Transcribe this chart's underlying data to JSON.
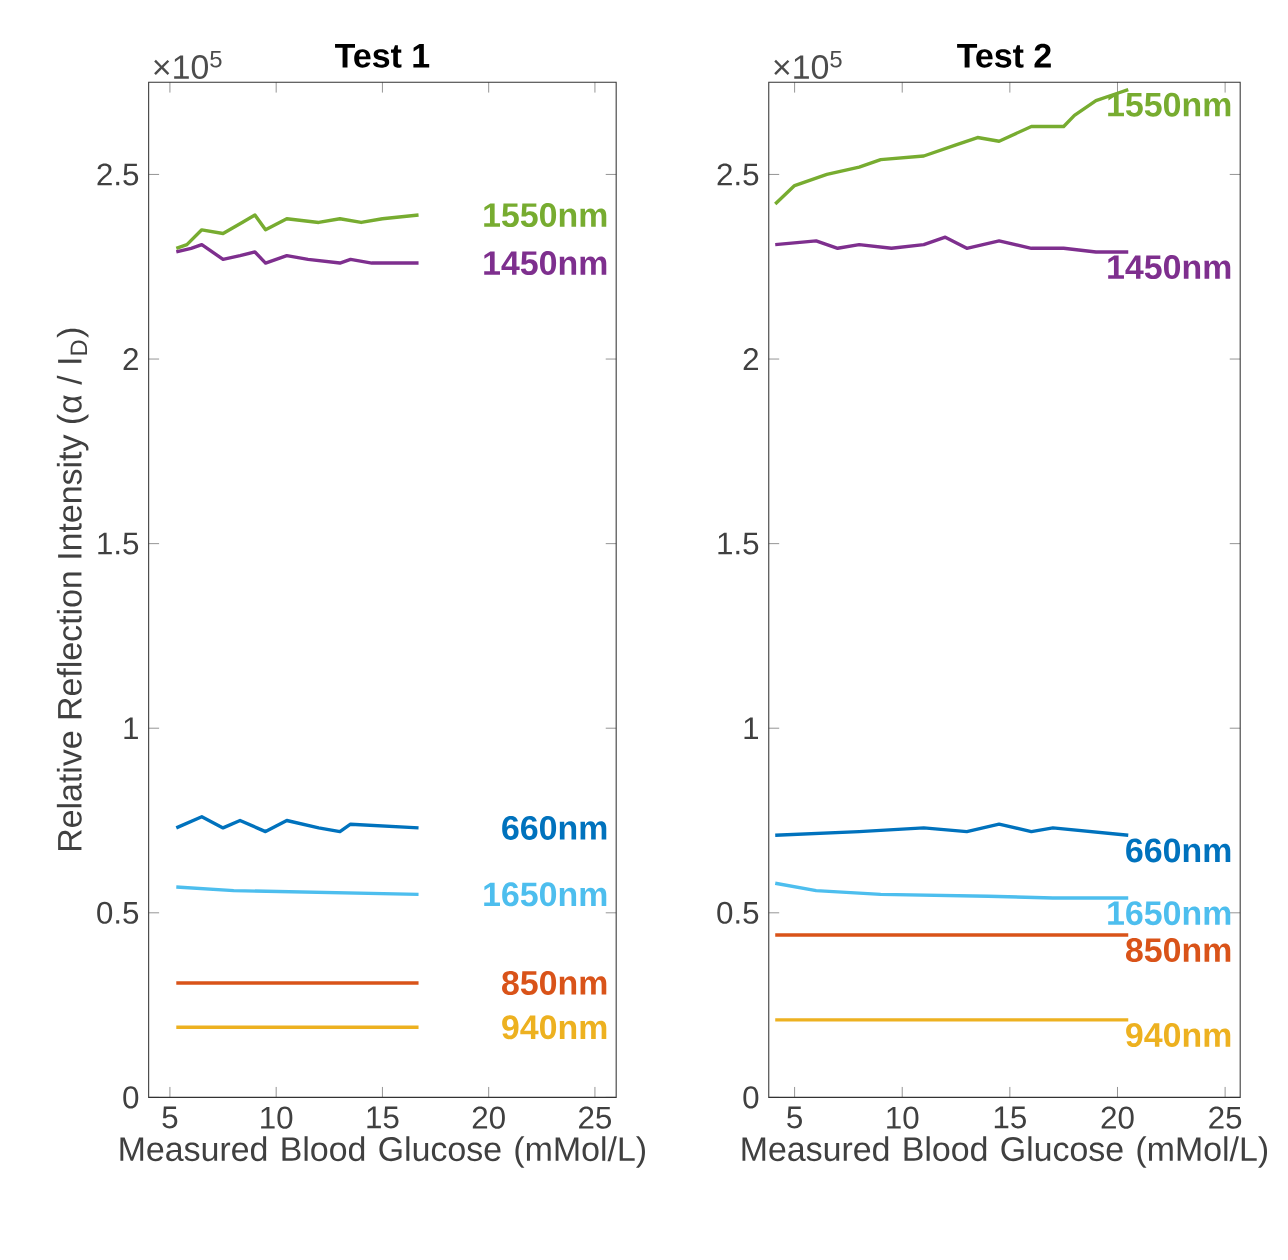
{
  "chart_data": [
    {
      "type": "line",
      "title": "Test 1",
      "xlabel": "Measured Blood Glucose (mMol/L)",
      "ylabel": "Relative Reflection Intensity (α / I$_{D}$)",
      "annotations": [
        "×10$^{5}$"
      ],
      "xlim": [
        4,
        26
      ],
      "xticks": [
        5,
        10,
        15,
        20,
        25
      ],
      "ylim": [
        0,
        2.75
      ],
      "yticks": [
        0,
        0.5,
        1,
        1.5,
        2,
        2.5
      ],
      "series": [
        {
          "name": "1550nm",
          "color": "#77ac30",
          "x": [
            5.3,
            5.8,
            6.5,
            7.5,
            8.4,
            9.0,
            9.5,
            10.5,
            12,
            13,
            14,
            15,
            16.7
          ],
          "values": [
            2.3,
            2.31,
            2.35,
            2.34,
            2.37,
            2.39,
            2.35,
            2.38,
            2.37,
            2.38,
            2.37,
            2.38,
            2.39
          ]
        },
        {
          "name": "1450nm",
          "color": "#7e2f8e",
          "x": [
            5.3,
            6,
            6.5,
            7.5,
            8.3,
            9.0,
            9.5,
            10.5,
            11.5,
            13,
            13.5,
            14.5,
            16.7
          ],
          "values": [
            2.29,
            2.3,
            2.31,
            2.27,
            2.28,
            2.29,
            2.26,
            2.28,
            2.27,
            2.26,
            2.27,
            2.26,
            2.26
          ]
        },
        {
          "name": "660nm",
          "color": "#0072bd",
          "x": [
            5.3,
            6.5,
            7.5,
            8.3,
            9.5,
            10.5,
            12,
            13,
            13.5,
            16.7
          ],
          "values": [
            0.73,
            0.76,
            0.73,
            0.75,
            0.72,
            0.75,
            0.73,
            0.72,
            0.74,
            0.73
          ]
        },
        {
          "name": "1650nm",
          "color": "#4dbeee",
          "x": [
            5.3,
            8,
            16.7
          ],
          "values": [
            0.57,
            0.56,
            0.55
          ]
        },
        {
          "name": "850nm",
          "color": "#d95319",
          "x": [
            5.3,
            16.7
          ],
          "values": [
            0.31,
            0.31
          ]
        },
        {
          "name": "940nm",
          "color": "#edb120",
          "x": [
            5.3,
            16.7
          ],
          "values": [
            0.19,
            0.19
          ]
        }
      ]
    },
    {
      "type": "line",
      "title": "Test 2",
      "xlabel": "Measured Blood Glucose (mMol/L)",
      "annotations": [
        "×10$^{5}$"
      ],
      "xlim": [
        3.8,
        25.7
      ],
      "xticks": [
        5,
        10,
        15,
        20,
        25
      ],
      "ylim": [
        0,
        2.75
      ],
      "yticks": [
        0,
        0.5,
        1,
        1.5,
        2,
        2.5
      ],
      "series": [
        {
          "name": "1550nm",
          "color": "#77ac30",
          "x": [
            4.1,
            5,
            6.5,
            8,
            9,
            11,
            12.5,
            13.5,
            14.5,
            16,
            17.5,
            18,
            19,
            20,
            20.5
          ],
          "values": [
            2.42,
            2.47,
            2.5,
            2.52,
            2.54,
            2.55,
            2.58,
            2.6,
            2.59,
            2.63,
            2.63,
            2.66,
            2.7,
            2.72,
            2.73
          ]
        },
        {
          "name": "1450nm",
          "color": "#7e2f8e",
          "x": [
            4.1,
            6,
            7,
            8,
            9.5,
            11,
            12,
            13,
            14.5,
            16,
            17.5,
            19,
            20.5
          ],
          "values": [
            2.31,
            2.32,
            2.3,
            2.31,
            2.3,
            2.31,
            2.33,
            2.3,
            2.32,
            2.3,
            2.3,
            2.29,
            2.29
          ]
        },
        {
          "name": "660nm",
          "color": "#0072bd",
          "x": [
            4.1,
            8,
            11,
            13,
            14.5,
            16,
            17,
            20.5
          ],
          "values": [
            0.71,
            0.72,
            0.73,
            0.72,
            0.74,
            0.72,
            0.73,
            0.71
          ]
        },
        {
          "name": "1650nm",
          "color": "#4dbeee",
          "x": [
            4.1,
            6,
            9,
            14,
            17,
            20.5
          ],
          "values": [
            0.58,
            0.56,
            0.55,
            0.545,
            0.54,
            0.54
          ]
        },
        {
          "name": "850nm",
          "color": "#d95319",
          "x": [
            4.1,
            20.5
          ],
          "values": [
            0.44,
            0.44
          ]
        },
        {
          "name": "940nm",
          "color": "#edb120",
          "x": [
            4.1,
            20.5
          ],
          "values": [
            0.21,
            0.21
          ]
        }
      ]
    }
  ]
}
